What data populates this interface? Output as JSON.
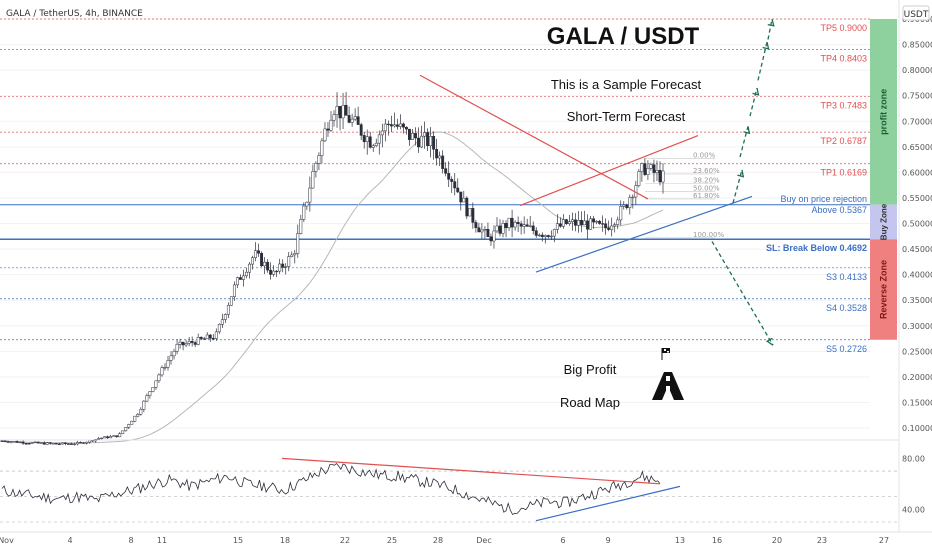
{
  "header": {
    "symbol": "GALA / TetherUS, 4h, BINANCE"
  },
  "currency": "USDT",
  "annotations": {
    "title": "GALA / USDT",
    "sample": "This is a Sample Forecast",
    "short_term": "Short-Term Forecast",
    "big_profit": "Big Profit",
    "road_map": "Road Map",
    "buy_text_1": "Buy on price rejection",
    "buy_text_2": "Above 0.5367"
  },
  "zones": {
    "profit": "profit zone",
    "buy": "Buy Zone",
    "reverse": "Reverse Zone"
  },
  "colors": {
    "up": "#26a69a",
    "down": "#ef5350",
    "candle": "#2a2e39",
    "profit_zone": "#8fd19e",
    "buy_zone": "#c5c6f0",
    "reverse_zone": "#f08080",
    "target": "#e05050",
    "support": "#3a6fc4",
    "arrow": "#1f6f4f"
  },
  "chart_data": {
    "type": "candlestick",
    "instrument": "GALA / TetherUS",
    "timeframe": "4h",
    "exchange": "BINANCE",
    "ylim": [
      0.065,
      0.9
    ],
    "y_ticks": [
      "0.90000",
      "0.85000",
      "0.80000",
      "0.75000",
      "0.70000",
      "0.65000",
      "0.60000",
      "0.55000",
      "0.50000",
      "0.45000",
      "0.40000",
      "0.35000",
      "0.30000",
      "0.25000",
      "0.20000",
      "0.15000",
      "0.10000"
    ],
    "x_ticks": [
      "Nov",
      "4",
      "8",
      "11",
      "15",
      "18",
      "22",
      "25",
      "28",
      "Dec",
      "6",
      "9",
      "13",
      "16",
      "20",
      "23",
      "27"
    ],
    "levels": [
      {
        "label": "TP5 0.9000",
        "value": 0.9,
        "kind": "target"
      },
      {
        "label": "TP4 0.8403",
        "value": 0.8403,
        "kind": "target"
      },
      {
        "label": "TP3 0.7483",
        "value": 0.7483,
        "kind": "target"
      },
      {
        "label": "TP2 0.6787",
        "value": 0.6787,
        "kind": "target"
      },
      {
        "label": "TP1 0.6169",
        "value": 0.6169,
        "kind": "target"
      },
      {
        "label": "SL: Break Below 0.4692",
        "value": 0.4692,
        "kind": "stop"
      },
      {
        "label": "S3 0.4133",
        "value": 0.4133,
        "kind": "support"
      },
      {
        "label": "S4 0.3528",
        "value": 0.3528,
        "kind": "support"
      },
      {
        "label": "S5 0.2726",
        "value": 0.2726,
        "kind": "support"
      }
    ],
    "entry_level": 0.5367,
    "fibonacci": [
      {
        "label": "0.00%",
        "value": 0.627
      },
      {
        "label": "23.60%",
        "value": 0.597
      },
      {
        "label": "38.20%",
        "value": 0.578
      },
      {
        "label": "50.00%",
        "value": 0.563
      },
      {
        "label": "61.80%",
        "value": 0.548
      },
      {
        "label": "100.00%",
        "value": 0.472
      }
    ],
    "series": [
      {
        "date": "Oct 30",
        "price": 0.075
      },
      {
        "date": "Nov 2",
        "price": 0.072
      },
      {
        "date": "Nov 5",
        "price": 0.07
      },
      {
        "date": "Nov 8",
        "price": 0.069
      },
      {
        "date": "Nov 11",
        "price": 0.07
      },
      {
        "date": "Nov 13",
        "price": 0.08
      },
      {
        "date": "Nov 15",
        "price": 0.085
      },
      {
        "date": "Nov 16",
        "price": 0.13
      },
      {
        "date": "Nov 17",
        "price": 0.2
      },
      {
        "date": "Nov 18",
        "price": 0.26
      },
      {
        "date": "Nov 19",
        "price": 0.27
      },
      {
        "date": "Nov 20",
        "price": 0.28
      },
      {
        "date": "Nov 21",
        "price": 0.38
      },
      {
        "date": "Nov 22",
        "price": 0.44
      },
      {
        "date": "Nov 23",
        "price": 0.4
      },
      {
        "date": "Nov 24",
        "price": 0.44
      },
      {
        "date": "Nov 25",
        "price": 0.6
      },
      {
        "date": "Nov 26",
        "price": 0.73
      },
      {
        "date": "Nov 27",
        "price": 0.7
      },
      {
        "date": "Nov 28",
        "price": 0.66
      },
      {
        "date": "Nov 29",
        "price": 0.7
      },
      {
        "date": "Nov 30",
        "price": 0.67
      },
      {
        "date": "Dec 1",
        "price": 0.66
      },
      {
        "date": "Dec 2",
        "price": 0.6
      },
      {
        "date": "Dec 3",
        "price": 0.52
      },
      {
        "date": "Dec 4",
        "price": 0.47
      },
      {
        "date": "Dec 5",
        "price": 0.5
      },
      {
        "date": "Dec 6",
        "price": 0.49
      },
      {
        "date": "Dec 7",
        "price": 0.48
      },
      {
        "date": "Dec 8",
        "price": 0.5
      },
      {
        "date": "Dec 9",
        "price": 0.5
      },
      {
        "date": "Dec 10",
        "price": 0.49
      },
      {
        "date": "Dec 11",
        "price": 0.53
      },
      {
        "date": "Dec 12",
        "price": 0.61
      },
      {
        "date": "Dec 12.5",
        "price": 0.59
      }
    ],
    "rsi": {
      "y_ticks": [
        "80.00",
        "40.00"
      ],
      "series": [
        55,
        52,
        50,
        48,
        50,
        47,
        52,
        55,
        60,
        63,
        58,
        62,
        66,
        60,
        58,
        55,
        62,
        70,
        74,
        70,
        67,
        66,
        63,
        60,
        56,
        50,
        45,
        40,
        42,
        46,
        45,
        50,
        55,
        60,
        66,
        62
      ]
    }
  }
}
